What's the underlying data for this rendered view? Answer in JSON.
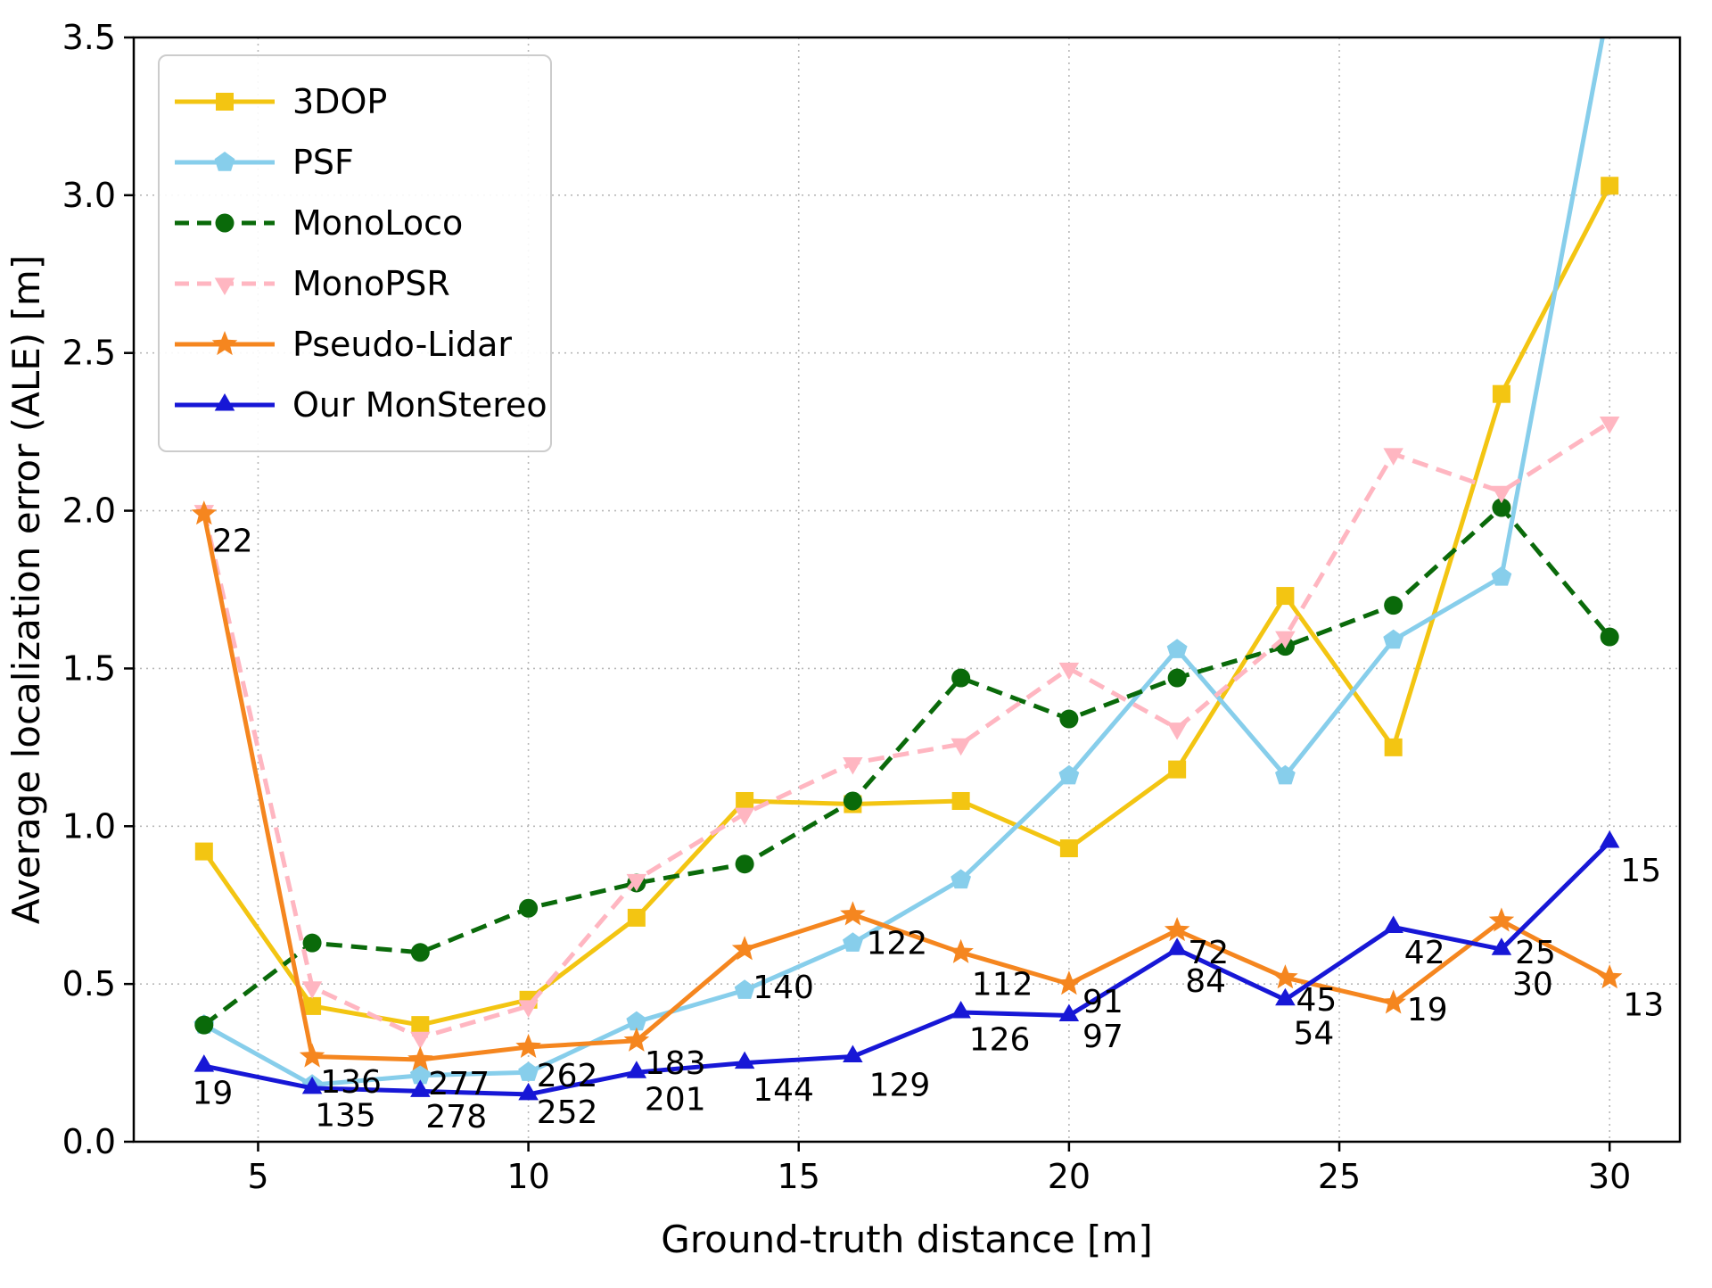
{
  "chart_data": {
    "type": "line",
    "title": "",
    "xlabel": "Ground-truth distance [m]",
    "ylabel": "Average localization error (ALE) [m]",
    "xlim": [
      2.7,
      31.3
    ],
    "ylim": [
      0,
      3.5
    ],
    "xticks": [
      5,
      10,
      15,
      20,
      25,
      30
    ],
    "xtick_labels": [
      "5",
      "10",
      "15",
      "20",
      "25",
      "30"
    ],
    "yticks": [
      0,
      0.5,
      1.0,
      1.5,
      2.0,
      2.5,
      3.0,
      3.5
    ],
    "ytick_labels": [
      "0.0",
      "0.5",
      "1.0",
      "1.5",
      "2.0",
      "2.5",
      "3.0",
      "3.5"
    ],
    "grid": true,
    "legend_position": "upper-left",
    "x": [
      4,
      6,
      8,
      10,
      12,
      14,
      16,
      18,
      20,
      22,
      24,
      26,
      28,
      30
    ],
    "series": [
      {
        "name": "3DOP",
        "color": "#f3c512",
        "line": "solid",
        "marker": "square",
        "values": [
          0.92,
          0.43,
          0.37,
          0.45,
          0.71,
          1.08,
          1.07,
          1.08,
          0.93,
          1.18,
          1.73,
          1.25,
          2.37,
          3.03
        ]
      },
      {
        "name": "PSF",
        "color": "#87ceeb",
        "line": "solid",
        "marker": "pentagon",
        "values": [
          0.37,
          0.18,
          0.21,
          0.22,
          0.38,
          0.48,
          0.63,
          0.83,
          1.16,
          1.56,
          1.16,
          1.59,
          1.79,
          3.62
        ]
      },
      {
        "name": "MonoLoco",
        "color": "#0a6a0a",
        "line": "dashed",
        "marker": "circle",
        "values": [
          0.37,
          0.63,
          0.6,
          0.74,
          0.82,
          0.88,
          1.08,
          1.47,
          1.34,
          1.47,
          1.57,
          1.7,
          2.01,
          1.6
        ]
      },
      {
        "name": "MonoPSR",
        "color": "#ffb6c1",
        "line": "dashed",
        "marker": "triangle-down",
        "values": [
          2.0,
          0.49,
          0.33,
          0.43,
          0.83,
          1.04,
          1.2,
          1.26,
          1.5,
          1.31,
          1.6,
          2.18,
          2.06,
          2.28
        ]
      },
      {
        "name": "Pseudo-Lidar",
        "color": "#f5861f",
        "line": "solid",
        "marker": "star",
        "values": [
          1.99,
          0.27,
          0.26,
          0.3,
          0.32,
          0.61,
          0.72,
          0.6,
          0.5,
          0.67,
          0.52,
          0.44,
          0.7,
          0.52
        ]
      },
      {
        "name": "Our MonStereo",
        "color": "#1717d6",
        "line": "solid",
        "marker": "triangle-up",
        "values": [
          0.24,
          0.17,
          0.16,
          0.15,
          0.22,
          0.25,
          0.27,
          0.41,
          0.4,
          0.61,
          0.45,
          0.68,
          0.61,
          0.95
        ]
      }
    ],
    "annotations": [
      {
        "text": "22",
        "x": 4.15,
        "y": 1.87
      },
      {
        "text": "19",
        "x": 3.78,
        "y": 0.12
      },
      {
        "text": "136",
        "x": 6.15,
        "y": 0.155
      },
      {
        "text": "135",
        "x": 6.05,
        "y": 0.05
      },
      {
        "text": "277",
        "x": 8.15,
        "y": 0.15
      },
      {
        "text": "278",
        "x": 8.1,
        "y": 0.045
      },
      {
        "text": "262",
        "x": 10.15,
        "y": 0.175
      },
      {
        "text": "252",
        "x": 10.15,
        "y": 0.06
      },
      {
        "text": "183",
        "x": 12.15,
        "y": 0.215
      },
      {
        "text": "201",
        "x": 12.15,
        "y": 0.1
      },
      {
        "text": "140",
        "x": 14.15,
        "y": 0.455
      },
      {
        "text": "144",
        "x": 14.15,
        "y": 0.13
      },
      {
        "text": "122",
        "x": 16.25,
        "y": 0.595
      },
      {
        "text": "129",
        "x": 16.3,
        "y": 0.145
      },
      {
        "text": "112",
        "x": 18.2,
        "y": 0.465
      },
      {
        "text": "126",
        "x": 18.15,
        "y": 0.29
      },
      {
        "text": "91",
        "x": 20.25,
        "y": 0.41
      },
      {
        "text": "97",
        "x": 20.25,
        "y": 0.3
      },
      {
        "text": "72",
        "x": 22.2,
        "y": 0.565
      },
      {
        "text": "84",
        "x": 22.15,
        "y": 0.475
      },
      {
        "text": "45",
        "x": 24.2,
        "y": 0.415
      },
      {
        "text": "54",
        "x": 24.15,
        "y": 0.31
      },
      {
        "text": "42",
        "x": 26.2,
        "y": 0.565
      },
      {
        "text": "19",
        "x": 26.25,
        "y": 0.385
      },
      {
        "text": "25",
        "x": 28.25,
        "y": 0.565
      },
      {
        "text": "30",
        "x": 28.2,
        "y": 0.465
      },
      {
        "text": "15",
        "x": 30.2,
        "y": 0.825
      },
      {
        "text": "13",
        "x": 30.25,
        "y": 0.4
      }
    ]
  }
}
